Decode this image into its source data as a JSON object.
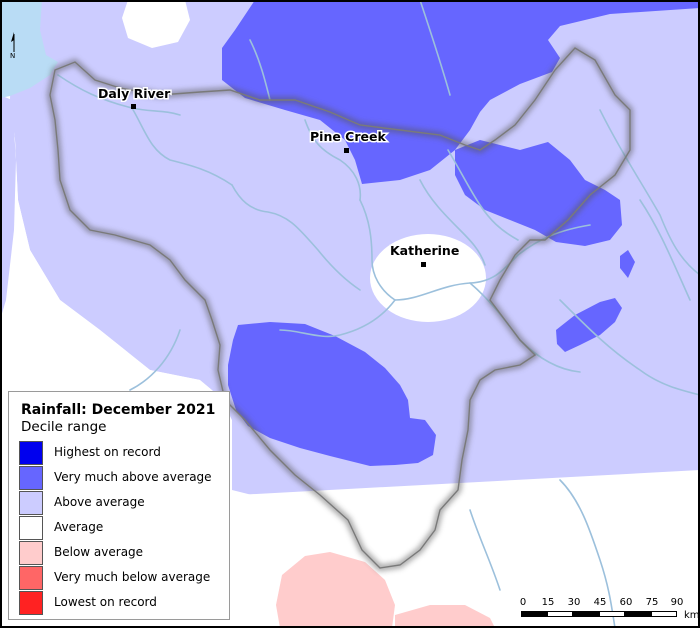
{
  "map": {
    "legend": {
      "title": "Rainfall: December 2021",
      "subtitle": "Decile range",
      "items": [
        {
          "label": "Highest on record",
          "color": "#0000ee"
        },
        {
          "label": "Very much above average",
          "color": "#6666ff"
        },
        {
          "label": "Above average",
          "color": "#ccccff"
        },
        {
          "label": "Average",
          "color": "#ffffff"
        },
        {
          "label": "Below average",
          "color": "#ffcccc"
        },
        {
          "label": "Very much below average",
          "color": "#ff6666"
        },
        {
          "label": "Lowest on record",
          "color": "#ff2222"
        }
      ]
    },
    "towns": [
      {
        "name": "Daly River"
      },
      {
        "name": "Pine Creek"
      },
      {
        "name": "Katherine"
      }
    ],
    "north_arrow": {
      "label": "N"
    },
    "scale": {
      "ticks": [
        "0",
        "15",
        "30",
        "45",
        "60",
        "75",
        "90"
      ],
      "unit": "km"
    },
    "colors": {
      "sea": "#b9dcf5",
      "river": "#9cc0dc",
      "boundary_shadow": "#555555"
    }
  }
}
